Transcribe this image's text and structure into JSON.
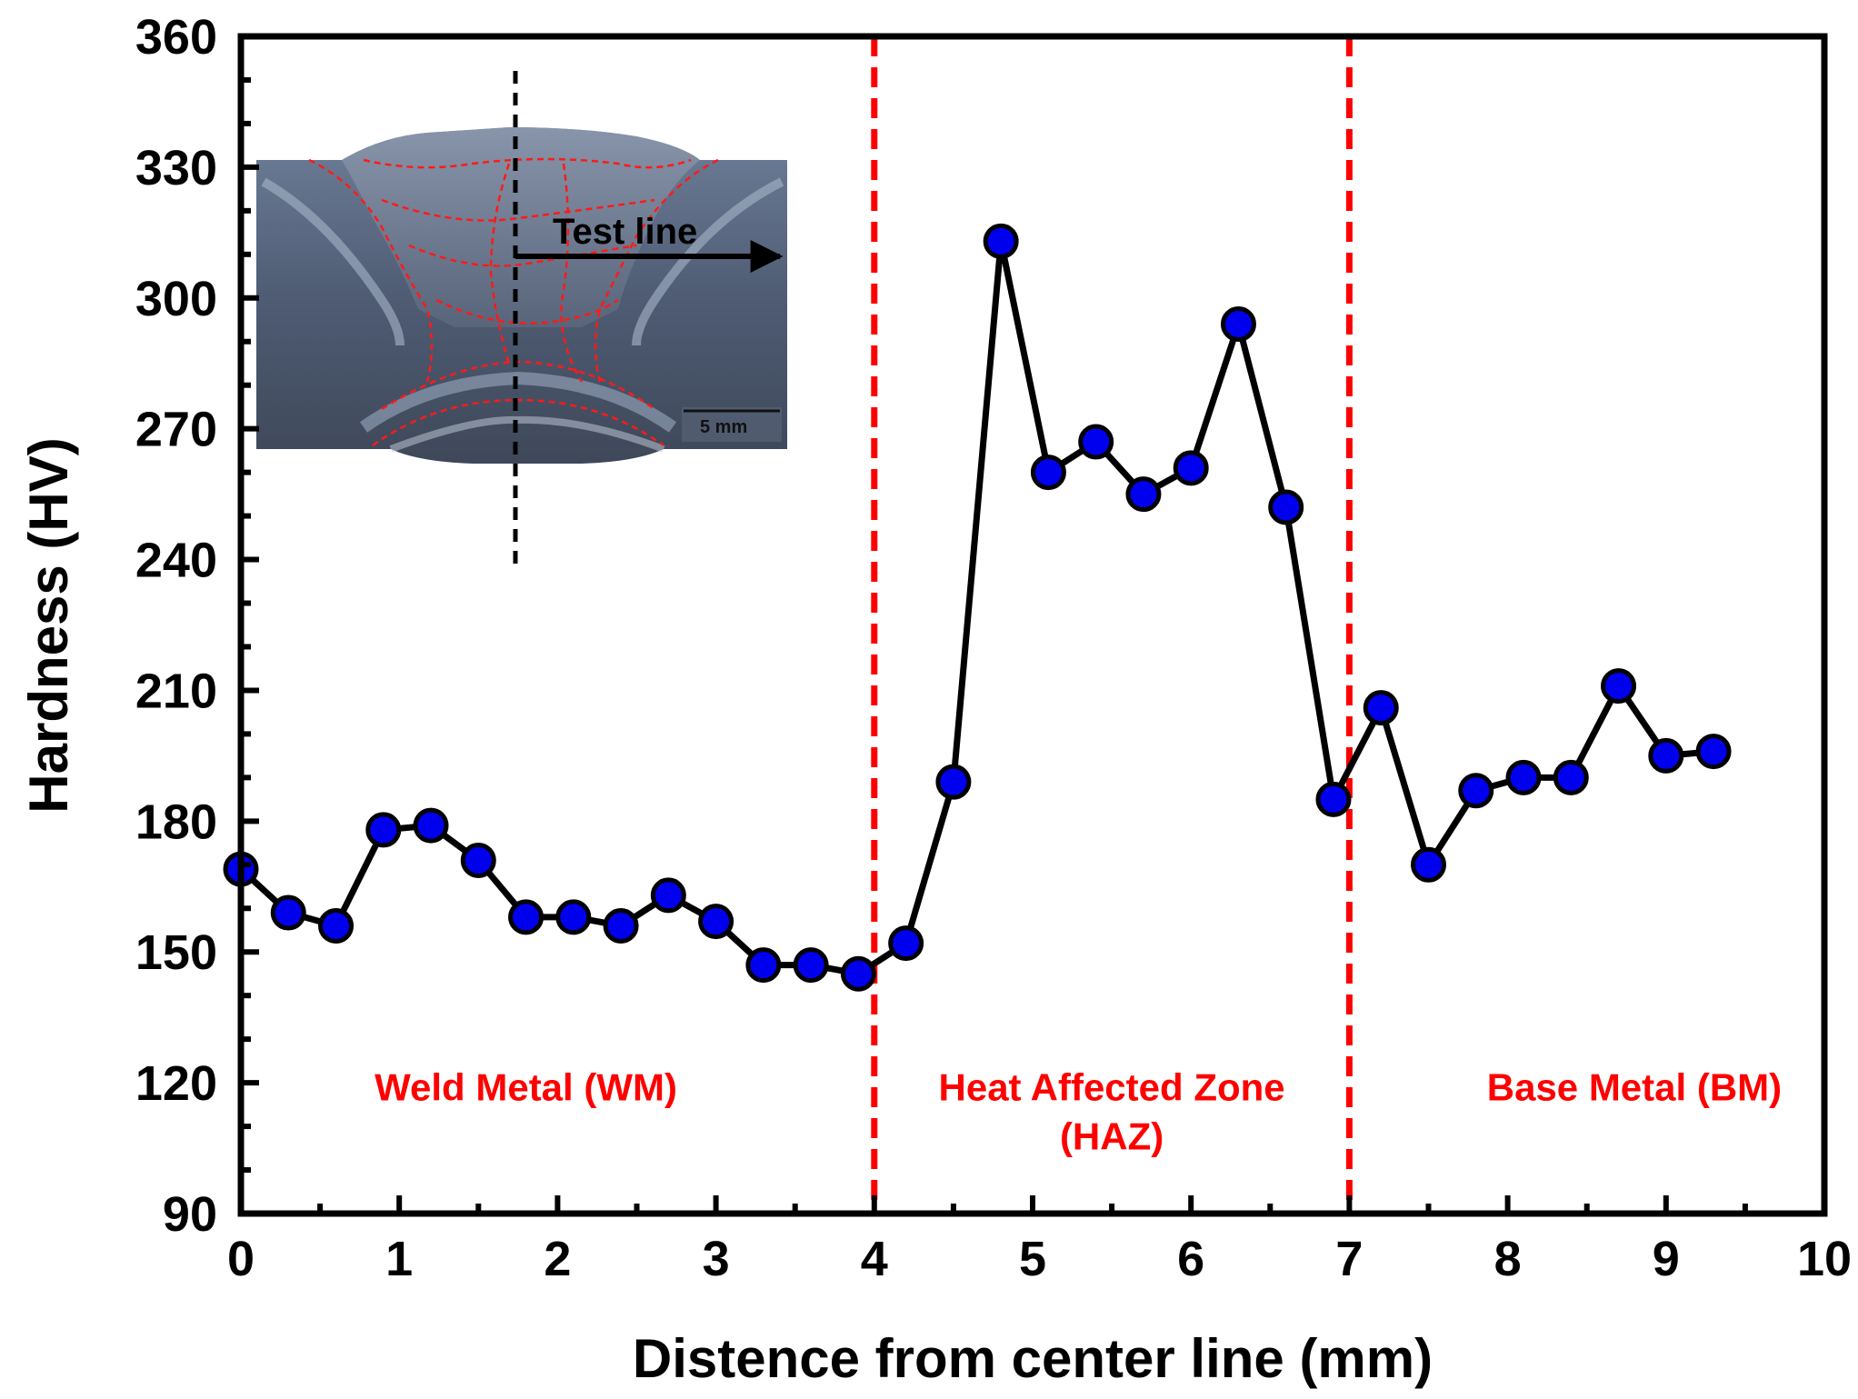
{
  "chart_data": {
    "type": "line",
    "xlabel": "Distence from center line (mm)",
    "ylabel": "Hardness (HV)",
    "xlim": [
      0,
      10
    ],
    "ylim": [
      90,
      360
    ],
    "xticks": [
      0,
      1,
      2,
      3,
      4,
      5,
      6,
      7,
      8,
      9,
      10
    ],
    "yticks": [
      90,
      120,
      150,
      180,
      210,
      240,
      270,
      300,
      330,
      360
    ],
    "grid": false,
    "series": [
      {
        "name": "Hardness",
        "color": "#000000",
        "marker_color": "#0000ee",
        "x": [
          0,
          0.3,
          0.6,
          0.9,
          1.2,
          1.5,
          1.8,
          2.1,
          2.4,
          2.7,
          3.0,
          3.3,
          3.6,
          3.9,
          4.2,
          4.5,
          4.8,
          5.1,
          5.4,
          5.7,
          6.0,
          6.3,
          6.6,
          6.9,
          7.2,
          7.5,
          7.8,
          8.1,
          8.4,
          8.7,
          9.0,
          9.3
        ],
        "y": [
          169,
          159,
          156,
          178,
          179,
          171,
          158,
          158,
          156,
          163,
          157,
          147,
          147,
          145,
          152,
          189,
          313,
          260,
          267,
          255,
          261,
          294,
          252,
          185,
          206,
          170,
          187,
          190,
          190,
          211,
          195,
          196
        ]
      }
    ],
    "boundaries": [
      {
        "x": 4,
        "color": "#ff0000"
      },
      {
        "x": 7,
        "color": "#ff0000"
      }
    ],
    "zones": [
      {
        "lines": [
          "Weld Metal (WM)"
        ],
        "x": 1.8,
        "y": 118
      },
      {
        "lines": [
          "Heat Affected Zone",
          "(HAZ)"
        ],
        "x": 5.5,
        "y": 118
      },
      {
        "lines": [
          "Base Metal (BM)"
        ],
        "x": 8.8,
        "y": 118
      }
    ],
    "inset": {
      "annotation": "Test line",
      "scale_bar": "5 mm"
    }
  }
}
